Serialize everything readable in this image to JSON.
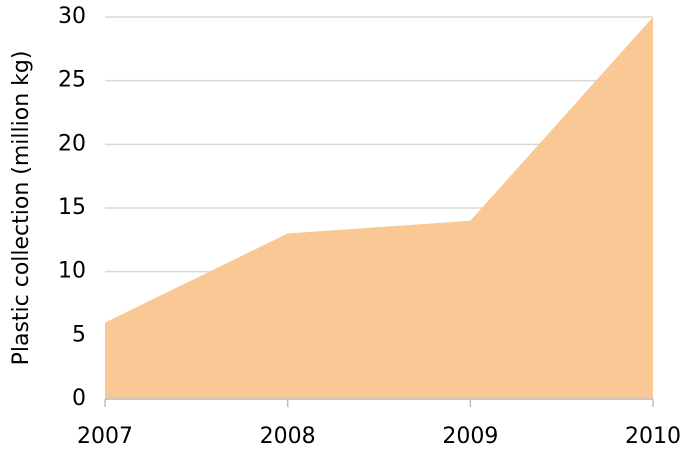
{
  "chart_data": {
    "type": "area",
    "y_label": "Plastic collection (million kg)",
    "x": [
      2007,
      2008,
      2009,
      2010
    ],
    "values": [
      6,
      13,
      14,
      30
    ],
    "color": "#f9c894",
    "xlim": [
      2007,
      2010
    ],
    "xticks": [
      2007,
      2008,
      2009,
      2010
    ],
    "ylim": [
      0,
      30
    ],
    "yticks": [
      0,
      5,
      10,
      15,
      20,
      25,
      30
    ],
    "grid": true
  }
}
